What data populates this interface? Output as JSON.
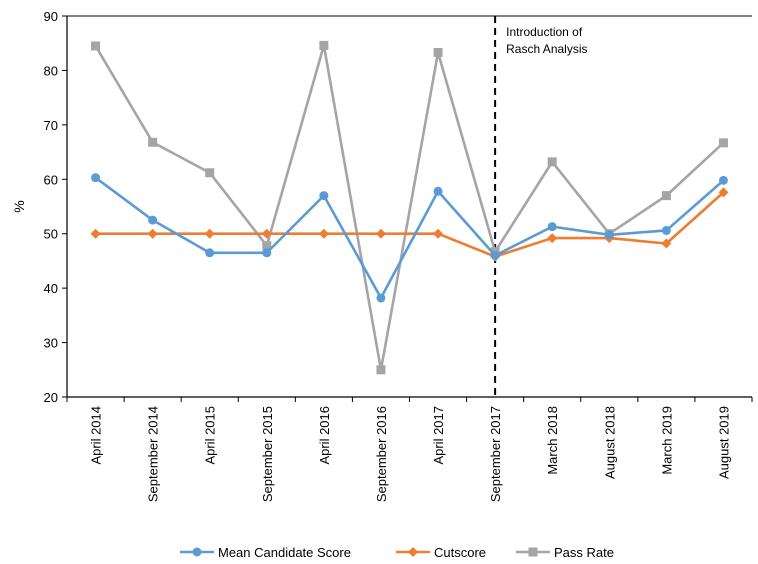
{
  "chart_data": {
    "type": "line",
    "categories": [
      "April 2014",
      "September 2014",
      "April 2015",
      "September 2015",
      "April 2016",
      "September 2016",
      "April 2017",
      "September 2017",
      "March 2018",
      "August 2018",
      "March 2019",
      "August 2019"
    ],
    "series": [
      {
        "name": "Mean Candidate Score",
        "color": "#5B9BD5",
        "marker": "circle",
        "values": [
          60.3,
          52.5,
          46.5,
          46.5,
          57.0,
          38.2,
          57.8,
          46.0,
          51.3,
          49.8,
          50.6,
          59.8
        ]
      },
      {
        "name": "Cutscore",
        "color": "#ED7D31",
        "marker": "diamond",
        "values": [
          50,
          50,
          50,
          50,
          50,
          50,
          50,
          45.8,
          49.2,
          49.2,
          48.2,
          57.6
        ]
      },
      {
        "name": "Pass Rate",
        "color": "#A5A5A5",
        "marker": "square",
        "values": [
          84.5,
          66.8,
          61.2,
          47.8,
          84.6,
          25.0,
          83.3,
          46.7,
          63.2,
          50.0,
          57.0,
          66.7
        ]
      }
    ],
    "ylabel": "%",
    "xlabel": "",
    "ylim": [
      20,
      90
    ],
    "yticks": [
      20,
      30,
      40,
      50,
      60,
      70,
      80,
      90
    ],
    "grid": false,
    "legend": "bottom",
    "annotation": {
      "x_category": "September 2017",
      "lines": [
        "Introduction of",
        "Rasch Analysis"
      ],
      "style": "dashed-vertical-line"
    }
  }
}
